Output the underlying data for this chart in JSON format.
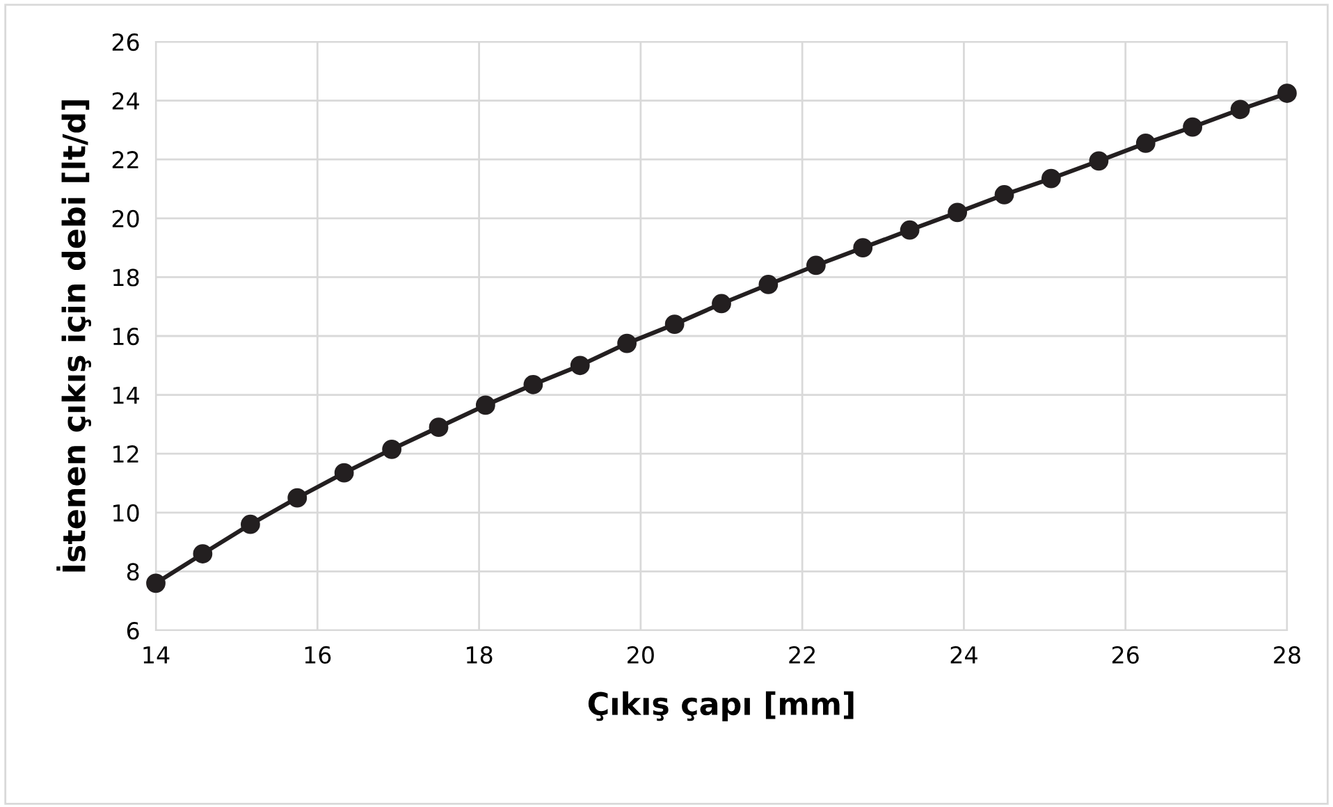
{
  "chart_data": {
    "type": "line",
    "xlabel": "Çıkış çapı [mm]",
    "ylabel": "İstenen çıkış için debi [lt/d]",
    "x": [
      14,
      14.58,
      15.17,
      15.75,
      16.33,
      16.92,
      17.5,
      18.08,
      18.67,
      19.25,
      19.83,
      20.42,
      21,
      21.58,
      22.17,
      22.75,
      23.33,
      23.92,
      24.5,
      25.08,
      25.67,
      26.25,
      26.83,
      27.42,
      28
    ],
    "series": [
      {
        "color": "#231f20",
        "values": [
          7.6,
          8.6,
          9.6,
          10.5,
          11.35,
          12.15,
          12.9,
          13.65,
          14.35,
          15.0,
          15.75,
          16.4,
          17.1,
          17.75,
          18.4,
          19.0,
          19.6,
          20.2,
          20.8,
          21.35,
          21.95,
          22.55,
          23.1,
          23.7,
          24.25
        ]
      }
    ],
    "xlim": [
      14,
      28
    ],
    "xticks": [
      14,
      16,
      18,
      20,
      22,
      24,
      26,
      28
    ],
    "ylim": [
      6,
      26
    ],
    "yticks": [
      6,
      8,
      10,
      12,
      14,
      16,
      18,
      20,
      22,
      24,
      26
    ],
    "grid": true,
    "marker": "circle",
    "line_style": "solid",
    "legend": false
  }
}
